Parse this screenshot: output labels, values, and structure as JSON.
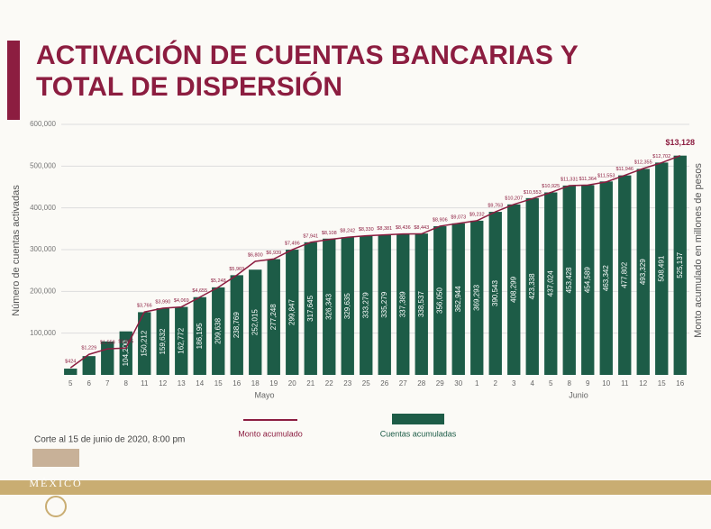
{
  "chart_data": {
    "type": "bar-line",
    "title_lines": [
      "ACTIVACIÓN DE CUENTAS BANCARIAS Y",
      "TOTAL DE DISPERSIÓN"
    ],
    "ylabel": "Número de cuentas activadas",
    "y2label": "Monto acumulado en millones de pesos",
    "categories": [
      "5",
      "6",
      "7",
      "8",
      "11",
      "12",
      "13",
      "14",
      "15",
      "16",
      "18",
      "19",
      "20",
      "21",
      "22",
      "23",
      "25",
      "26",
      "27",
      "28",
      "29",
      "30",
      "1",
      "2",
      "3",
      "4",
      "5",
      "8",
      "9",
      "10",
      "11",
      "12",
      "15",
      "16"
    ],
    "months": [
      {
        "label": "Mayo",
        "count": 22
      },
      {
        "label": "Junio",
        "count": 12
      }
    ],
    "series": [
      {
        "name": "Cuentas acumuladas",
        "kind": "bar",
        "color": "#1d5c47",
        "values": [
          15000,
          45000,
          80000,
          104200,
          150212,
          159632,
          162772,
          186195,
          209638,
          238769,
          252015,
          277248,
          299847,
          317645,
          326343,
          329635,
          333279,
          335279,
          337389,
          338537,
          356050,
          362944,
          369293,
          390543,
          408299,
          423338,
          437024,
          453428,
          454589,
          463342,
          477802,
          493329,
          508491,
          525137
        ],
        "value_labels": [
          null,
          null,
          null,
          "104,200",
          "150,212",
          "159,632",
          "162,772",
          "186,195",
          "209,638",
          "238,769",
          "252,015",
          "277,248",
          "299,847",
          "317,645",
          "326,343",
          "329,635",
          "333,279",
          "335,279",
          "337,389",
          "338,537",
          "356,050",
          "362,944",
          "369,293",
          "390,543",
          "408,299",
          "423,338",
          "437,024",
          "453,428",
          "454,589",
          "463,342",
          "477,802",
          "493,329",
          "508,491",
          "525,137"
        ]
      },
      {
        "name": "Monto acumulado",
        "kind": "line",
        "axis": "y2",
        "color": "#8c1d40",
        "values": [
          424,
          1229,
          1558,
          1605,
          3766,
          3990,
          4069,
          4655,
          5248,
          5969,
          6800,
          6939,
          7496,
          7941,
          8108,
          8242,
          8330,
          8381,
          8436,
          8443,
          8906,
          9073,
          9232,
          9763,
          10207,
          10553,
          10925,
          11331,
          11364,
          11553,
          11946,
          12355,
          12702,
          13128
        ],
        "value_labels": [
          "$424",
          "$1,229",
          "$1,558",
          "$1,605",
          "$3,766",
          "$3,990",
          "$4,069",
          "$4,655",
          "$5,248",
          "$5,969",
          "$6,800",
          "$6,939",
          "$7,496",
          "$7,941",
          "$8,108",
          "$8,242",
          "$8,330",
          "$8,381",
          "$8,436",
          "$8,443",
          "$8,906",
          "$9,073",
          "$9,232",
          "$9,763",
          "$10,207",
          "$10,553",
          "$10,925",
          "$11,331",
          "$11,364",
          "$11,553",
          "$11,946",
          "$12,355",
          "$12,702",
          "$13,128"
        ]
      }
    ],
    "ylim": [
      0,
      600000
    ],
    "yticks": [
      {
        "value": 100000,
        "label": "100,000"
      },
      {
        "value": 200000,
        "label": "200,000"
      },
      {
        "value": 300000,
        "label": "300,000"
      },
      {
        "value": 400000,
        "label": "400,000"
      },
      {
        "value": 500000,
        "label": "500,000"
      },
      {
        "value": 600000,
        "label": "600,000"
      }
    ],
    "y2lim": [
      0,
      15000
    ],
    "grid": true,
    "footnote": "Corte al 15 de junio de 2020, 8:00 pm",
    "logo_text": "MÉXICO"
  }
}
